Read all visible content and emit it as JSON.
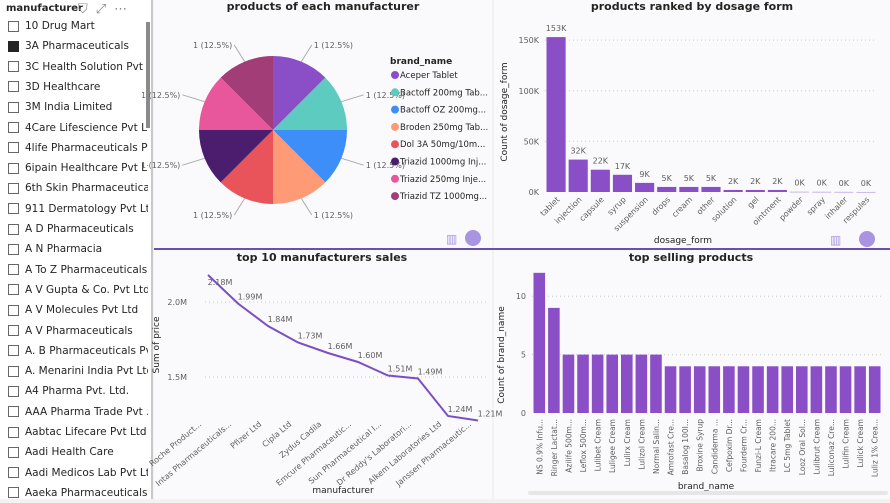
{
  "slicer": {
    "title": "manufacturer",
    "items": [
      {
        "label": "10 Drug Mart",
        "checked": false
      },
      {
        "label": "3A Pharmaceuticals",
        "checked": true
      },
      {
        "label": "3C Health Solution Pvt ...",
        "checked": false
      },
      {
        "label": "3D Healthcare",
        "checked": false
      },
      {
        "label": "3M India Limited",
        "checked": false
      },
      {
        "label": "4Care Lifescience Pvt Ltd",
        "checked": false
      },
      {
        "label": "4life Pharmaceuticals Pv...",
        "checked": false
      },
      {
        "label": "6ipain Healthcare Pvt Ltd",
        "checked": false
      },
      {
        "label": "6th Skin Pharmaceutical...",
        "checked": false
      },
      {
        "label": "911 Dermatology Pvt Ltd",
        "checked": false
      },
      {
        "label": "A D Pharmaceuticals",
        "checked": false
      },
      {
        "label": "A N Pharmacia",
        "checked": false
      },
      {
        "label": "A To Z Pharmaceuticals ...",
        "checked": false
      },
      {
        "label": "A V Gupta & Co. Pvt Ltd",
        "checked": false
      },
      {
        "label": "A V Molecules Pvt Ltd",
        "checked": false
      },
      {
        "label": "A V Pharmaceuticals",
        "checked": false
      },
      {
        "label": "A. B Pharmaceuticals Pv...",
        "checked": false
      },
      {
        "label": "A. Menarini India Pvt Ltd",
        "checked": false
      },
      {
        "label": "A4 Pharma Pvt. Ltd.",
        "checked": false
      },
      {
        "label": "AAA Pharma Trade Pvt ...",
        "checked": false
      },
      {
        "label": "Aabtac Lifecare Pvt Ltd",
        "checked": false
      },
      {
        "label": "Aadi Health Care",
        "checked": false
      },
      {
        "label": "Aadi Medicos Lab Pvt Ltd",
        "checked": false
      },
      {
        "label": "Aaeka Pharmaceuticals",
        "checked": false
      }
    ],
    "icons": [
      "filter-icon",
      "focus-mode-icon",
      "more-options-icon"
    ]
  },
  "chart_data": [
    {
      "type": "pie",
      "title": "products of each manufacturer",
      "legend_title": "brand_name",
      "legend_placement": "right",
      "slices": [
        {
          "name": "Aceper Tablet",
          "value": 1,
          "label": "1 (12.5%)",
          "color": "#8a4fc7"
        },
        {
          "name": "Bactoff 200mg Tab...",
          "value": 1,
          "label": "1 (12.5%)",
          "color": "#5ecbc0"
        },
        {
          "name": "Bactoff OZ 200mg...",
          "value": 1,
          "label": "1 (12.5%)",
          "color": "#3d8ef8"
        },
        {
          "name": "Broden 250mg Tab...",
          "value": 1,
          "label": "1 (12.5%)",
          "color": "#ff9a76"
        },
        {
          "name": "Dol 3A 50mg/10m...",
          "value": 1,
          "label": "1 (12.5%)",
          "color": "#e8545a"
        },
        {
          "name": "Triazid 1000mg Inj...",
          "value": 1,
          "label": "1 (12.5%)",
          "color": "#4b1d6e"
        },
        {
          "name": "Triazid 250mg Inje...",
          "value": 1,
          "label": "1 (12.5%)",
          "color": "#e8579b"
        },
        {
          "name": "Triazid TZ 1000mg...",
          "value": 1,
          "label": "1 (12.5%)",
          "color": "#a23d77"
        }
      ]
    },
    {
      "type": "bar",
      "title": "products ranked by dosage form",
      "xlabel": "dosage_form",
      "ylabel": "Count of dosage_form",
      "ylim": [
        0,
        160000
      ],
      "yticks": [
        "0K",
        "50K",
        "100K",
        "150K"
      ],
      "grid": true,
      "color": "#8a4fc7",
      "categories": [
        "tablet",
        "injection",
        "capsule",
        "syrup",
        "suspension",
        "drops",
        "cream",
        "other",
        "solution",
        "gel",
        "ointment",
        "powder",
        "spray",
        "inhaler",
        "respules"
      ],
      "values": [
        153000,
        32000,
        22000,
        17000,
        9000,
        5000,
        5000,
        5000,
        2000,
        2000,
        2000,
        400,
        300,
        200,
        100
      ],
      "data_labels": [
        "153K",
        "32K",
        "22K",
        "17K",
        "9K",
        "5K",
        "5K",
        "5K",
        "2K",
        "2K",
        "2K",
        "0K",
        "0K",
        "0K",
        "0K"
      ]
    },
    {
      "type": "line",
      "title": "top 10 manufacturers sales",
      "xlabel": "manufacturer",
      "ylabel": "Sum of price",
      "yticks": [
        "1.5M",
        "2.0M"
      ],
      "grid": true,
      "color": "#7b4fc4",
      "categories": [
        "Roche Product...",
        "Intas Pharmaceuticals...",
        "Pfizer Ltd",
        "Cipla Ltd",
        "Zydus Cadila",
        "Emcure Pharmaceutic...",
        "Sun Pharmaceutical I...",
        "Dr Reddy's Laboratori...",
        "Alkem Laboratories Ltd",
        "Janssen Pharmaceutic..."
      ],
      "values": [
        2.18,
        1.99,
        1.84,
        1.73,
        1.66,
        1.6,
        1.51,
        1.49,
        1.24,
        1.21
      ],
      "data_labels": [
        "2.18M",
        "1.99M",
        "1.84M",
        "1.73M",
        "1.66M",
        "1.60M",
        "1.51M",
        "1.49M",
        "1.24M",
        "1.21M"
      ]
    },
    {
      "type": "bar",
      "title": "top selling products",
      "xlabel": "brand_name",
      "ylabel": "Count of brand_name",
      "ylim": [
        0,
        12.5
      ],
      "yticks": [
        "0",
        "5",
        "10"
      ],
      "grid": true,
      "color": "#8a4fc7",
      "categories": [
        "NS 0.9% Infu...",
        "Ringer Lactat...",
        "Azilife 500m...",
        "Leflox 500m...",
        "Lulibet Cream",
        "Luligee Cream",
        "Lulirx Cream",
        "Lulizol Cream",
        "Normal Salin...",
        "Amrofast Cre...",
        "Basalog 100I...",
        "Broxine Syrup",
        "Candiderma ...",
        "Cefpoxim Dr...",
        "Fourderm Cr...",
        "Funzi-L Cream",
        "Itracare 200...",
        "LC 5mg Tablet",
        "Looz Oral Sol...",
        "Lulibrut Cream",
        "Luliconaz Cre...",
        "Lulifin Cream",
        "Lulick Cream",
        "Luliz 1% Crea..."
      ],
      "values": [
        12,
        9,
        5,
        5,
        5,
        5,
        5,
        5,
        5,
        4,
        4,
        4,
        4,
        4,
        4,
        4,
        4,
        4,
        4,
        4,
        4,
        4,
        4,
        4
      ]
    }
  ]
}
